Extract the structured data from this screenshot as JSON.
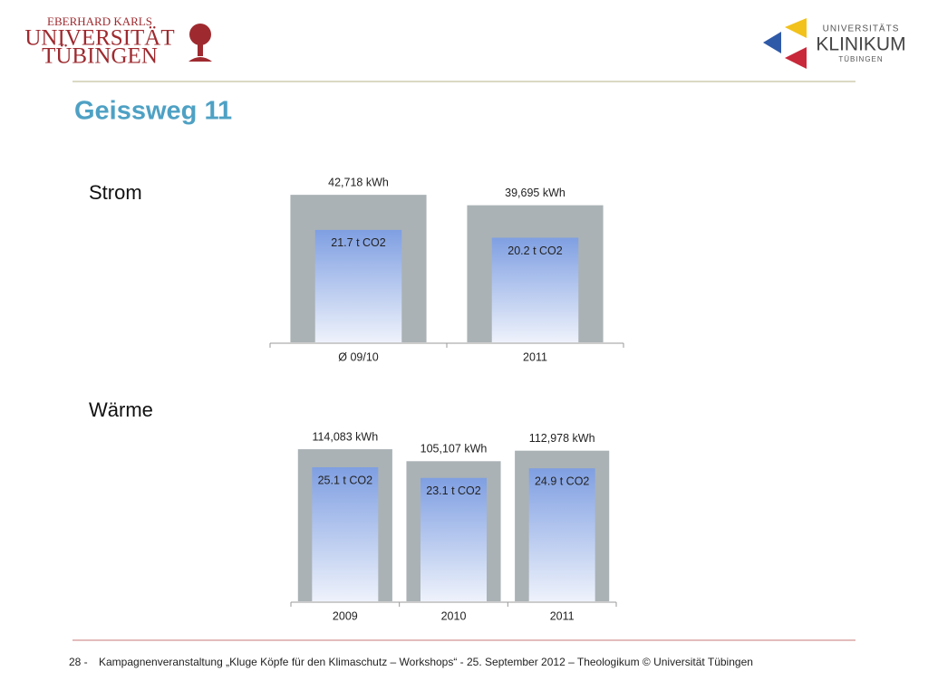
{
  "header": {
    "left_logo": [
      "EBERHARD KARLS",
      "UNIVERSITÄT",
      "TÜBINGEN"
    ],
    "right_logo": [
      "UNIVERSITÄTS",
      "KLINIKUM",
      "TÜBINGEN"
    ]
  },
  "title": "Geissweg 11",
  "chart_data": [
    {
      "type": "bar",
      "title": "Strom",
      "categories": [
        "Ø 09/10",
        "2011"
      ],
      "series": [
        {
          "values": [
            42718,
            39695
          ],
          "value_labels": [
            "42,718 kWh",
            "39,695 kWh"
          ],
          "color": "#aab2b5"
        },
        {
          "values": [
            21.7,
            20.2
          ],
          "value_labels": [
            "21.7 t CO2",
            "20.2 t CO2"
          ],
          "color": "#7f9fe2",
          "axis": "y2"
        }
      ],
      "ylim": [
        0,
        48000
      ],
      "y2lim": [
        0,
        32
      ]
    },
    {
      "type": "bar",
      "title": "Wärme",
      "categories": [
        "2009",
        "2010",
        "2011"
      ],
      "series": [
        {
          "values": [
            114083,
            105107,
            112978
          ],
          "value_labels": [
            "114,083 kWh",
            "105,107 kWh",
            "112,978 kWh"
          ],
          "color": "#aab2b5"
        },
        {
          "values": [
            25.1,
            23.1,
            24.9
          ],
          "value_labels": [
            "25.1 t CO2",
            "23.1 t CO2",
            "24.9 t CO2"
          ],
          "color": "#7f9fe2",
          "axis": "y2"
        }
      ],
      "ylim": [
        0,
        125000
      ],
      "y2lim": [
        0,
        31.2
      ]
    }
  ],
  "footer": {
    "page": "28 -",
    "text": "Kampagnenveranstaltung „Kluge Köpfe für den Klimaschutz – Workshops“ - 25. September 2012 – Theologikum © Universität Tübingen"
  }
}
